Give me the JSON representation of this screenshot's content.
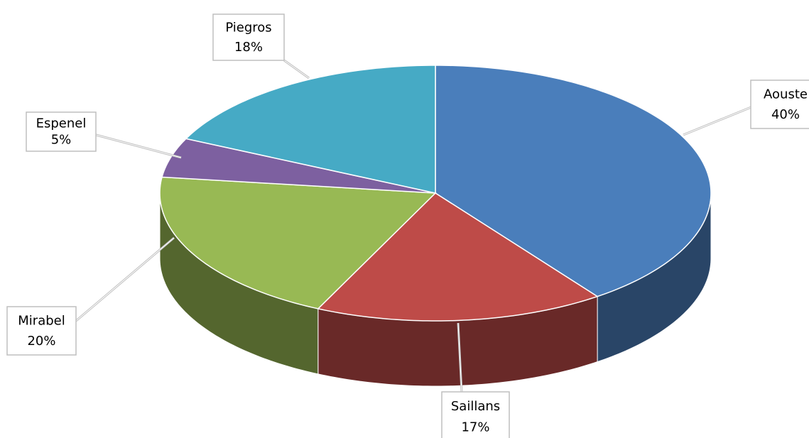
{
  "chart_data": {
    "type": "pie",
    "categories": [
      "Aouste",
      "Saillans",
      "Mirabel",
      "Espenel",
      "Piegros"
    ],
    "values": [
      40,
      17,
      20,
      5,
      18
    ],
    "value_labels": [
      "40%",
      "17%",
      "20%",
      "5%",
      "18%"
    ],
    "colors": [
      "#4a7ebb",
      "#be4b48",
      "#98b954",
      "#7d60a0",
      "#46aac5"
    ]
  }
}
